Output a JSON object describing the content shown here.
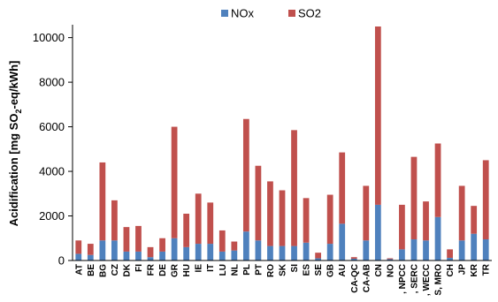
{
  "chart_data": {
    "type": "bar",
    "stacked": true,
    "title": "",
    "xlabel": "",
    "ylabel": {
      "prefix": "Acidification [mg SO",
      "sub": "2",
      "suffix": "-eq/kWh]"
    },
    "ylim": [
      0,
      10500
    ],
    "yticks": [
      0,
      2000,
      4000,
      6000,
      8000,
      10000
    ],
    "grid": false,
    "legend_position": "top-center",
    "categories": [
      "AT",
      "BE",
      "BG",
      "CZ",
      "DK",
      "FI",
      "FR",
      "DE",
      "GR",
      "HU",
      "IE",
      "IT",
      "LU",
      "NL",
      "PL",
      "PT",
      "RO",
      "SK",
      "SI",
      "ES",
      "SE",
      "GB",
      "AU",
      "CA-QC",
      "CA-AB",
      "CN",
      "NO",
      ", NPCC",
      ", SERC",
      ", WECC",
      "S, MRO",
      "CH",
      "JP",
      "KR",
      "TR"
    ],
    "series": [
      {
        "name": "NOx",
        "color": "#4f81bd",
        "values": [
          300,
          250,
          900,
          900,
          400,
          400,
          150,
          400,
          1000,
          600,
          750,
          750,
          400,
          450,
          1300,
          900,
          650,
          650,
          650,
          800,
          100,
          750,
          1650,
          80,
          900,
          2500,
          60,
          500,
          950,
          900,
          1950,
          120,
          900,
          1200,
          950
        ]
      },
      {
        "name": "SO2",
        "color": "#c0504d",
        "values": [
          600,
          500,
          3500,
          1800,
          1100,
          1150,
          450,
          600,
          5000,
          1500,
          2250,
          1850,
          950,
          400,
          5050,
          3350,
          2900,
          2500,
          5200,
          2000,
          250,
          2200,
          3200,
          70,
          2450,
          8000,
          40,
          2000,
          3700,
          1750,
          3300,
          380,
          2450,
          1250,
          3550
        ]
      }
    ]
  }
}
